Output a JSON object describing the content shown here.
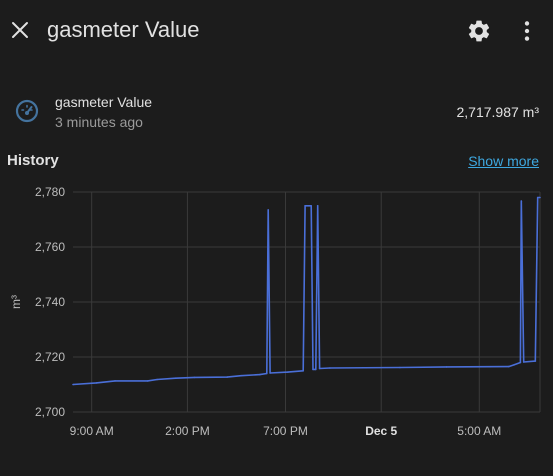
{
  "header": {
    "title": "gasmeter Value",
    "close_icon": "close-icon",
    "settings_icon": "gear-icon",
    "more_icon": "more-vert-icon"
  },
  "entity": {
    "name": "gasmeter Value",
    "last_changed": "3 minutes ago",
    "state": "2,717.987 m³",
    "icon": "gauge-icon"
  },
  "history": {
    "label": "History",
    "show_more": "Show more"
  },
  "colors": {
    "background": "#1c1c1c",
    "line": "#4a6fd8",
    "link": "#3ea8e0",
    "grid": "#3a3a3a"
  },
  "chart_data": {
    "type": "line",
    "ylabel": "m³",
    "ylim": [
      2700,
      2780
    ],
    "y_ticks": [
      "2,780",
      "2,760",
      "2,740",
      "2,720",
      "2,700"
    ],
    "x_ticks": [
      {
        "label": "9:00 AM",
        "bold": false
      },
      {
        "label": "2:00 PM",
        "bold": false
      },
      {
        "label": "7:00 PM",
        "bold": false
      },
      {
        "label": "Dec 5",
        "bold": true
      },
      {
        "label": "5:00 AM",
        "bold": false
      }
    ],
    "series": [
      {
        "values": [
          [
            0.0,
            2710.0
          ],
          [
            0.05,
            2710.6
          ],
          [
            0.09,
            2711.3
          ],
          [
            0.16,
            2711.3
          ],
          [
            0.18,
            2711.8
          ],
          [
            0.22,
            2712.3
          ],
          [
            0.26,
            2712.6
          ],
          [
            0.33,
            2712.7
          ],
          [
            0.36,
            2713.2
          ],
          [
            0.4,
            2713.6
          ],
          [
            0.415,
            2714.0
          ],
          [
            0.418,
            2773.5
          ],
          [
            0.422,
            2714.2
          ],
          [
            0.46,
            2714.5
          ],
          [
            0.493,
            2715.0
          ],
          [
            0.497,
            2775.0
          ],
          [
            0.51,
            2775.0
          ],
          [
            0.514,
            2715.5
          ],
          [
            0.52,
            2715.5
          ],
          [
            0.524,
            2775.0
          ],
          [
            0.528,
            2715.8
          ],
          [
            0.55,
            2716.0
          ],
          [
            0.7,
            2716.2
          ],
          [
            0.8,
            2716.4
          ],
          [
            0.933,
            2716.5
          ],
          [
            0.945,
            2717.2
          ],
          [
            0.958,
            2718.0
          ],
          [
            0.96,
            2776.7
          ],
          [
            0.965,
            2718.2
          ],
          [
            0.99,
            2718.5
          ],
          [
            0.995,
            2778.0
          ],
          [
            1.0,
            2778.0
          ]
        ]
      }
    ]
  }
}
